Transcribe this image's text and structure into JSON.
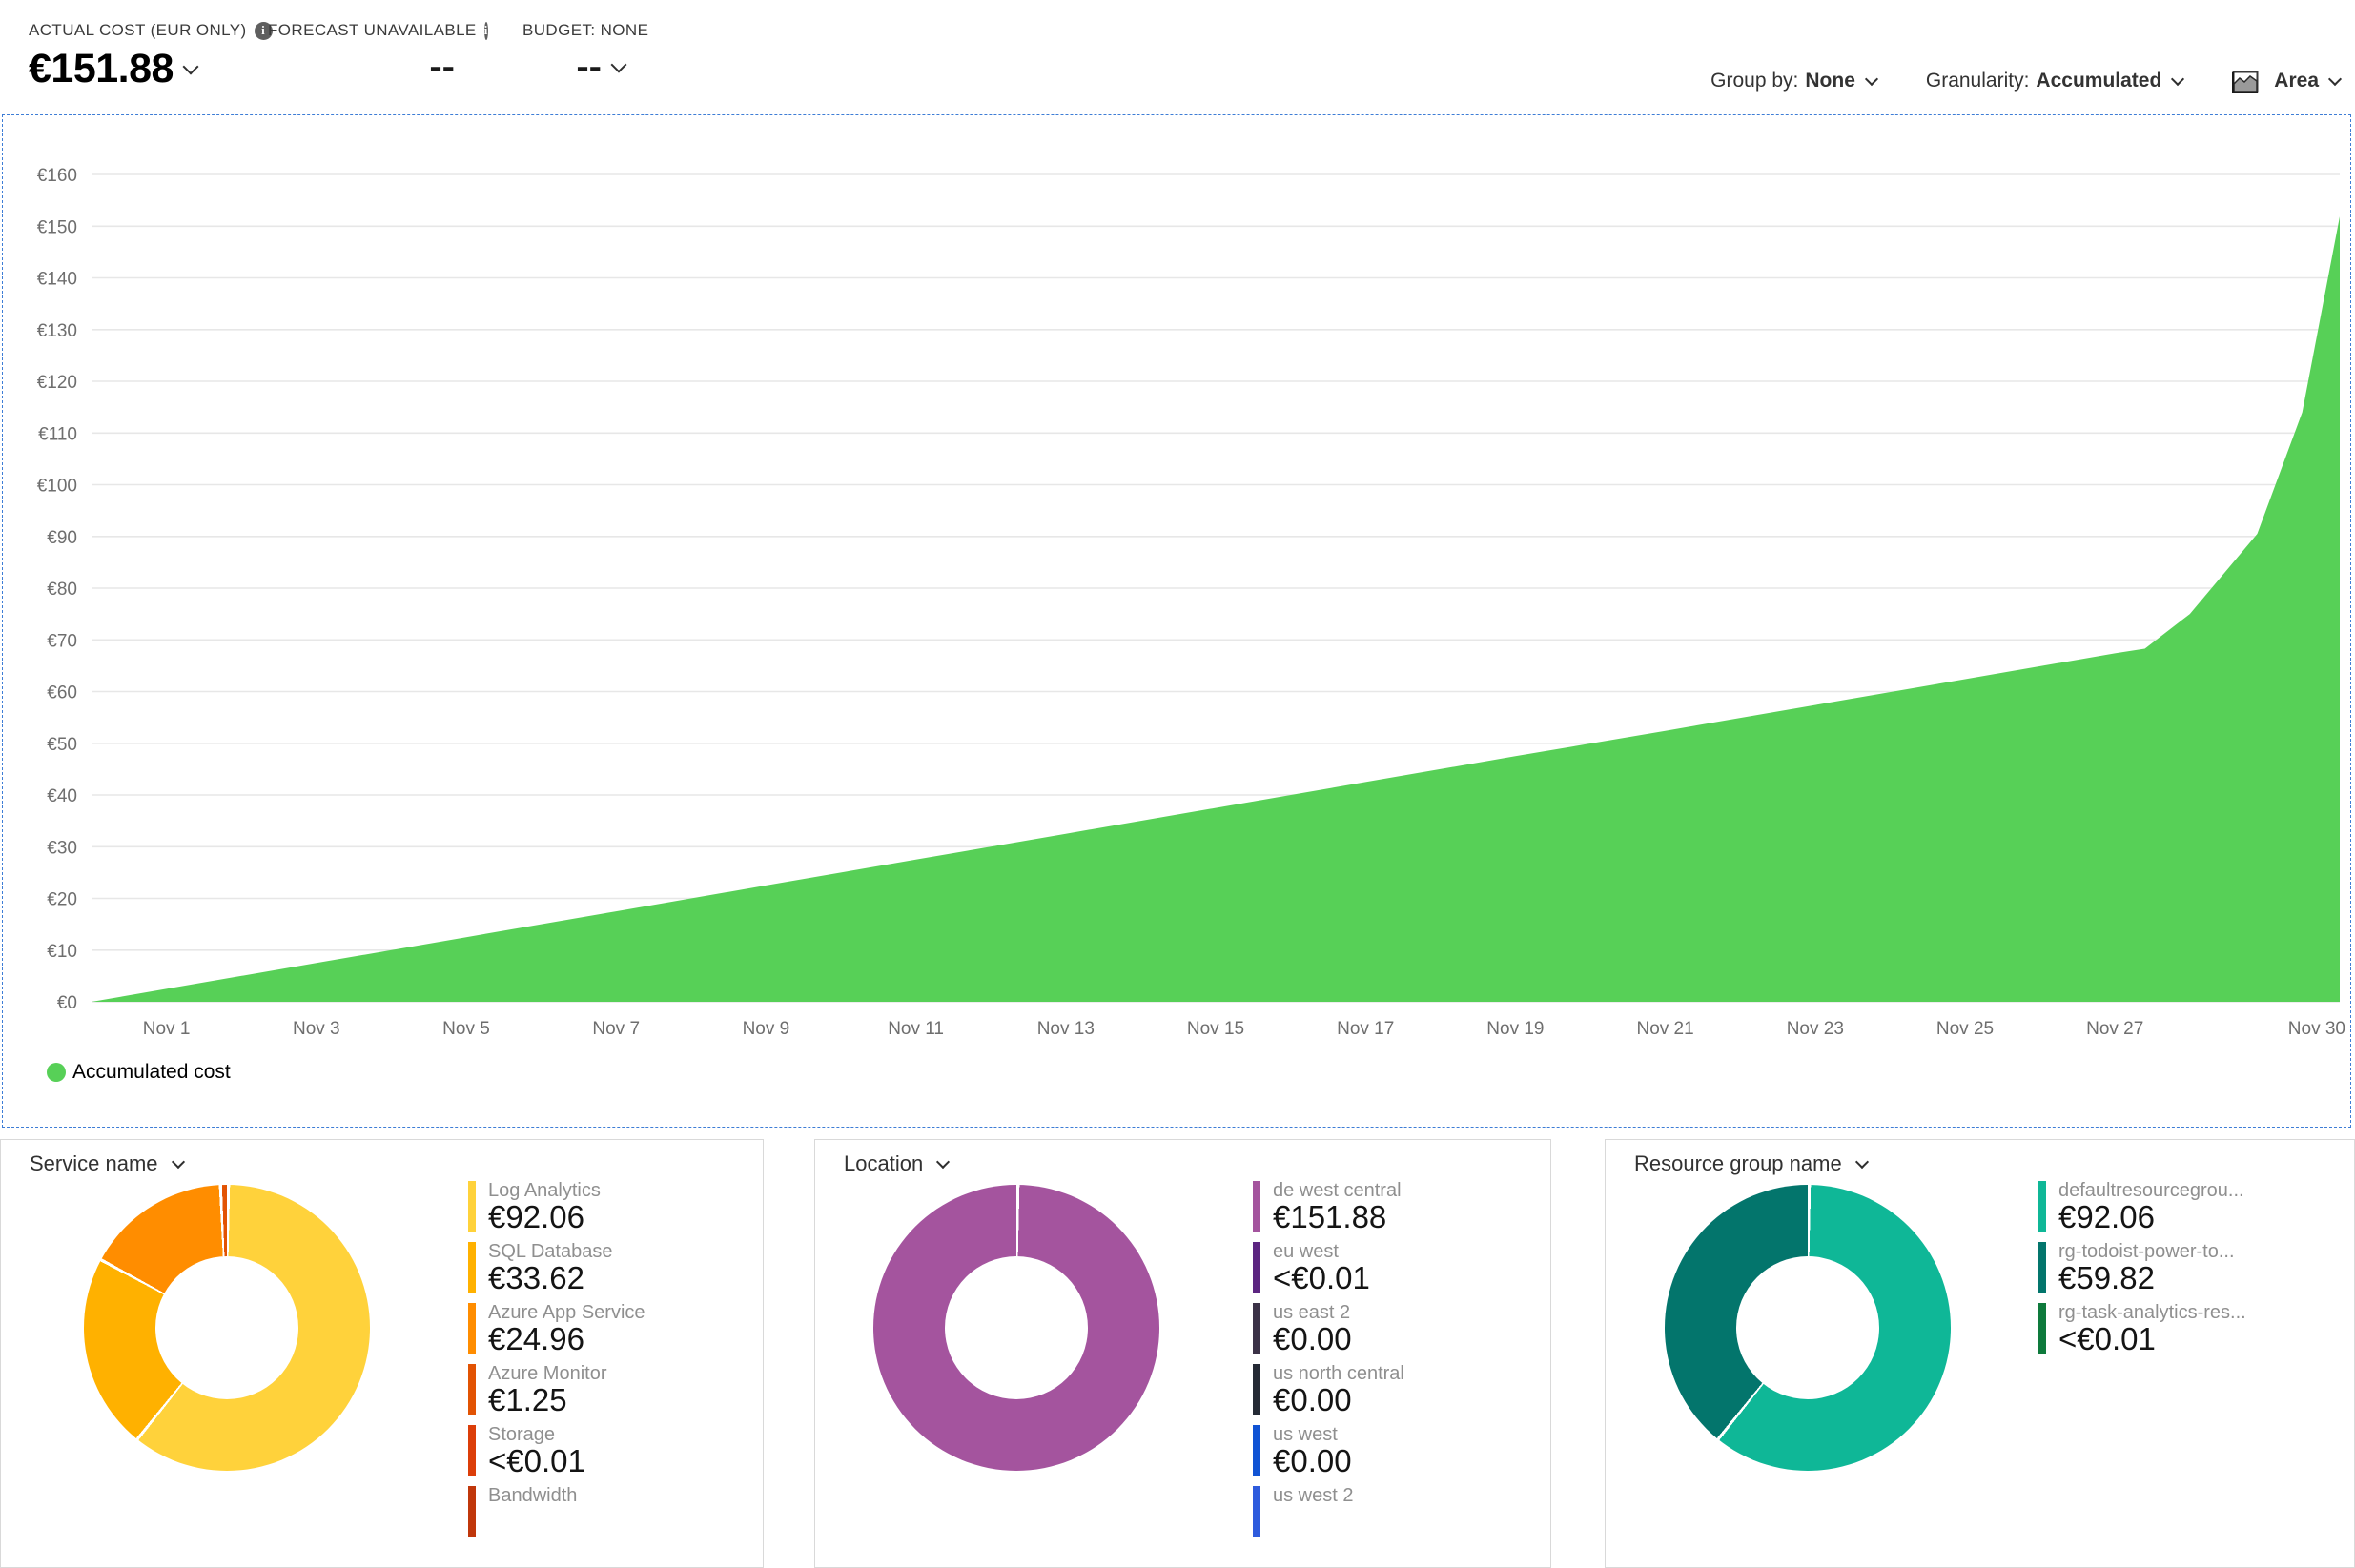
{
  "kpis": {
    "actual": {
      "label": "ACTUAL COST (EUR ONLY)",
      "value": "€151.88",
      "has_info_icon": true,
      "has_dropdown": true
    },
    "forecast": {
      "label": "FORECAST UNAVAILABLE",
      "value": "--",
      "has_info_icon": true,
      "has_dropdown": false
    },
    "budget": {
      "label": "BUDGET: NONE",
      "value": "--",
      "has_info_icon": false,
      "has_dropdown": true
    }
  },
  "controls": {
    "group_by_label": "Group by:",
    "group_by_value": "None",
    "granularity_label": "Granularity:",
    "granularity_value": "Accumulated",
    "chart_type": "Area"
  },
  "chart_data": {
    "type": "area",
    "legend_label": "Accumulated cost",
    "legend_position": "bottom-left",
    "grid": true,
    "currency": "EUR",
    "y_prefix": "€",
    "ylim": [
      0,
      160
    ],
    "y_step": 10,
    "x_max_day": 30,
    "x_ticks": [
      {
        "label": "Nov 1",
        "day": 1
      },
      {
        "label": "Nov 3",
        "day": 3
      },
      {
        "label": "Nov 5",
        "day": 5
      },
      {
        "label": "Nov 7",
        "day": 7
      },
      {
        "label": "Nov 9",
        "day": 9
      },
      {
        "label": "Nov 11",
        "day": 11
      },
      {
        "label": "Nov 13",
        "day": 13
      },
      {
        "label": "Nov 15",
        "day": 15
      },
      {
        "label": "Nov 17",
        "day": 17
      },
      {
        "label": "Nov 19",
        "day": 19
      },
      {
        "label": "Nov 21",
        "day": 21
      },
      {
        "label": "Nov 23",
        "day": 23
      },
      {
        "label": "Nov 25",
        "day": 25
      },
      {
        "label": "Nov 27",
        "day": 27
      },
      {
        "label": "Nov 30",
        "day": 30
      }
    ],
    "series": [
      {
        "name": "Accumulated cost",
        "color": "#57d057",
        "points": [
          [
            0,
            0
          ],
          [
            1,
            2.5
          ],
          [
            3,
            7.5
          ],
          [
            5,
            12.5
          ],
          [
            7,
            17.5
          ],
          [
            9,
            22.5
          ],
          [
            11,
            27.5
          ],
          [
            13,
            32.5
          ],
          [
            15,
            37.5
          ],
          [
            17,
            42.5
          ],
          [
            19,
            47.5
          ],
          [
            21,
            52.4
          ],
          [
            23,
            57.4
          ],
          [
            25,
            62.4
          ],
          [
            27,
            67.4
          ],
          [
            27.4,
            68.3
          ],
          [
            28,
            75
          ],
          [
            28.9,
            90.5
          ],
          [
            29.5,
            114
          ],
          [
            30,
            151.88
          ]
        ]
      }
    ]
  },
  "breakdowns": [
    {
      "title": "Service name",
      "items": [
        {
          "label": "Log Analytics",
          "value": "€92.06",
          "color": "#FFD23B",
          "pct": 60.6
        },
        {
          "label": "SQL Database",
          "value": "€33.62",
          "color": "#FFB100",
          "pct": 22.1
        },
        {
          "label": "Azure App Service",
          "value": "€24.96",
          "color": "#FF8D00",
          "pct": 16.4
        },
        {
          "label": "Azure Monitor",
          "value": "€1.25",
          "color": "#E25303",
          "pct": 0.9
        },
        {
          "label": "Storage",
          "value": "<€0.01",
          "color": "#DC3E09",
          "pct": 0
        },
        {
          "label": "Bandwidth",
          "value": "",
          "color": "#C0370B",
          "pct": 0
        }
      ]
    },
    {
      "title": "Location",
      "items": [
        {
          "label": "de west central",
          "value": "€151.88",
          "color": "#A4549E",
          "pct": 100
        },
        {
          "label": "eu west",
          "value": "<€0.01",
          "color": "#5C2581",
          "pct": 0
        },
        {
          "label": "us east 2",
          "value": "€0.00",
          "color": "#3B3247",
          "pct": 0
        },
        {
          "label": "us north central",
          "value": "€0.00",
          "color": "#252A35",
          "pct": 0
        },
        {
          "label": "us west",
          "value": "€0.00",
          "color": "#1053D4",
          "pct": 0
        },
        {
          "label": "us west 2",
          "value": "",
          "color": "#2E5BDD",
          "pct": 0
        }
      ]
    },
    {
      "title": "Resource group name",
      "items": [
        {
          "label": "defaultresourcegrou...",
          "value": "€92.06",
          "color": "#0FB797",
          "pct": 60.6
        },
        {
          "label": "rg-todoist-power-to...",
          "value": "€59.82",
          "color": "#03756C",
          "pct": 39.4
        },
        {
          "label": "rg-task-analytics-res...",
          "value": "<€0.01",
          "color": "#0E7A3C",
          "pct": 0
        }
      ]
    }
  ]
}
